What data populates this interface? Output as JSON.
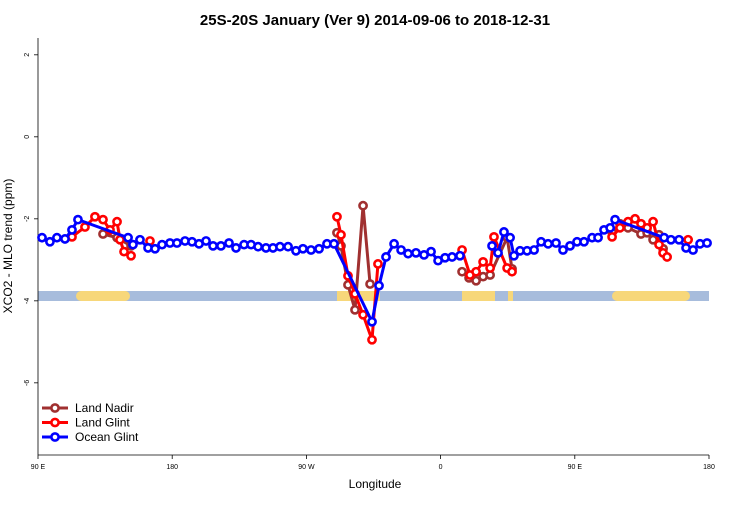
{
  "chart_data": {
    "type": "line",
    "title": "25S-20S January (Ver 9)   2014-09-06 to 2018-12-31",
    "x_label": "Longitude",
    "y_label": "XCO2 - MLO trend (ppm)",
    "xlim": [
      90,
      540
    ],
    "xticks": [
      {
        "value": 90,
        "label": "90 E"
      },
      {
        "value": 180,
        "label": "180"
      },
      {
        "value": 270,
        "label": "90 W"
      },
      {
        "value": 360,
        "label": "0"
      },
      {
        "value": 450,
        "label": "90 E"
      },
      {
        "value": 540,
        "label": "180"
      }
    ],
    "ylim": [
      -7.76,
      2.41
    ],
    "yticks": [
      2,
      0,
      -2,
      -4,
      -6
    ],
    "legend": "bottom-left",
    "series": [
      {
        "name": "Land Nadir",
        "color": "#a03030",
        "x": [
          133.6,
          143.0,
          152.4,
          null,
          290.5,
          293.2,
          297.9,
          302.6,
          308.0,
          312.7,
          null,
          374.4,
          379.1,
          383.8,
          388.5,
          393.2,
          404.6,
          407.9,
          null,
          475.0,
          480.3,
          485.7,
          494.4,
          498.5,
          502.5,
          506.5,
          509.2
        ],
        "values": [
          -2.37,
          -2.46,
          -2.66,
          null,
          -2.34,
          -2.66,
          -3.61,
          -4.22,
          -1.68,
          -3.59,
          null,
          -3.29,
          -3.44,
          -3.51,
          -3.41,
          -3.37,
          -2.46,
          -3.22,
          null,
          -2.32,
          -2.12,
          -2.22,
          -2.37,
          -2.34,
          -2.51,
          -2.39,
          -2.73
        ]
      },
      {
        "name": "Land Glint",
        "color": "#ff0000",
        "x": [
          112.8,
          121.5,
          128.2,
          133.6,
          138.3,
          143.0,
          145.0,
          147.7,
          152.4,
          null,
          165.1,
          null,
          290.5,
          293.2,
          297.9,
          302.6,
          308.0,
          314.0,
          318.0,
          null,
          374.4,
          379.7,
          383.8,
          388.5,
          393.2,
          395.8,
          404.6,
          407.9,
          null,
          475.0,
          480.3,
          485.7,
          490.4,
          494.4,
          498.5,
          502.5,
          506.5,
          509.2,
          511.9,
          null,
          526.0
        ],
        "values": [
          -2.44,
          -2.2,
          -1.95,
          -2.02,
          -2.27,
          -2.07,
          -2.51,
          -2.8,
          -2.9,
          null,
          -2.54,
          null,
          -1.95,
          -2.39,
          -3.39,
          -3.83,
          -4.34,
          -4.95,
          -3.1,
          null,
          -2.76,
          -3.37,
          -3.29,
          -3.05,
          -3.2,
          -2.44,
          -3.2,
          -3.29,
          null,
          -2.44,
          -2.22,
          -2.07,
          -2.0,
          -2.12,
          -2.22,
          -2.07,
          -2.63,
          -2.83,
          -2.93,
          null,
          -2.51
        ]
      },
      {
        "name": "Ocean Glint",
        "color": "#0000ff",
        "x": [
          92.7,
          98.0,
          102.7,
          108.1,
          112.8,
          116.8,
          150.4,
          153.7,
          158.4,
          163.8,
          168.5,
          173.2,
          178.5,
          183.2,
          188.6,
          193.3,
          198.0,
          202.7,
          207.4,
          212.7,
          218.1,
          222.8,
          228.2,
          232.9,
          237.6,
          242.9,
          247.6,
          252.3,
          257.7,
          263.0,
          267.7,
          273.1,
          278.5,
          283.8,
          288.5,
          314.0,
          318.7,
          323.4,
          328.8,
          333.5,
          338.2,
          343.5,
          348.9,
          353.6,
          358.3,
          363.0,
          367.7,
          373.0,
          null,
          394.5,
          398.5,
          402.5,
          406.6,
          409.2,
          413.3,
          418.0,
          422.7,
          427.4,
          432.1,
          437.4,
          442.1,
          446.8,
          451.5,
          456.2,
          461.6,
          465.6,
          469.6,
          473.7,
          477.0,
          509.9,
          514.5,
          519.9,
          524.6,
          529.3,
          534.0,
          538.7
        ],
        "values": [
          -2.46,
          -2.56,
          -2.46,
          -2.49,
          -2.27,
          -2.02,
          -2.46,
          -2.63,
          -2.51,
          -2.71,
          -2.73,
          -2.63,
          -2.59,
          -2.59,
          -2.54,
          -2.56,
          -2.61,
          -2.54,
          -2.66,
          -2.66,
          -2.59,
          -2.71,
          -2.63,
          -2.63,
          -2.68,
          -2.71,
          -2.71,
          -2.68,
          -2.68,
          -2.78,
          -2.73,
          -2.76,
          -2.73,
          -2.61,
          -2.61,
          -4.51,
          -3.63,
          -2.93,
          -2.61,
          -2.76,
          -2.85,
          -2.83,
          -2.88,
          -2.8,
          -3.02,
          -2.95,
          -2.93,
          -2.9,
          null,
          -2.66,
          -2.83,
          -2.32,
          -2.46,
          -2.9,
          -2.78,
          -2.78,
          -2.76,
          -2.56,
          -2.61,
          -2.59,
          -2.76,
          -2.66,
          -2.56,
          -2.56,
          -2.46,
          -2.46,
          -2.27,
          -2.22,
          -2.02,
          -2.46,
          -2.51,
          -2.51,
          -2.71,
          -2.76,
          -2.61,
          -2.59
        ]
      }
    ]
  }
}
